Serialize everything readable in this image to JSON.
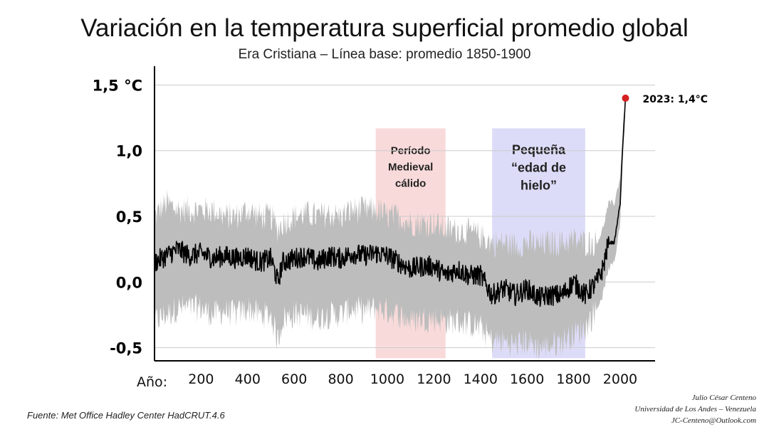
{
  "chart_data": {
    "type": "line",
    "title": "Variación en la temperatura superficial promedio global",
    "subtitle": "Era Cristiana – Línea base: promedio 1850-1900",
    "xlabel": "Año:",
    "xlim": [
      0,
      2150
    ],
    "ylim": [
      -0.6,
      1.6
    ],
    "x_ticks": [
      "200",
      "400",
      "600",
      "800",
      "1000",
      "1200",
      "1400",
      "1600",
      "1800",
      "2000"
    ],
    "y_ticks": [
      {
        "value": -0.5,
        "label": "-0,5"
      },
      {
        "value": 0,
        "label": "0,0"
      },
      {
        "value": 0.5,
        "label": "0,5"
      },
      {
        "value": 1.0,
        "label": "1,0"
      },
      {
        "value": 1.5,
        "label": "1,5 °C"
      }
    ],
    "grid": true,
    "shaded_periods": [
      {
        "label_lines": [
          "Período",
          "Medieval",
          "cálido"
        ],
        "start": 950,
        "end": 1250,
        "color": "#f9dada"
      },
      {
        "label_lines": [
          "Pequeña",
          "“edad de",
          "hielo”"
        ],
        "start": 1450,
        "end": 1850,
        "color": "#dcdcf8"
      }
    ],
    "series": [
      {
        "color": "#000000",
        "x": [
          0,
          50,
          100,
          150,
          200,
          250,
          300,
          350,
          400,
          450,
          500,
          530,
          550,
          600,
          650,
          700,
          750,
          800,
          850,
          900,
          950,
          1000,
          1050,
          1100,
          1150,
          1200,
          1250,
          1300,
          1350,
          1400,
          1450,
          1500,
          1550,
          1600,
          1650,
          1700,
          1750,
          1800,
          1850,
          1900,
          1925,
          1950,
          1975,
          2000,
          2010,
          2023
        ],
        "y": [
          0.15,
          0.2,
          0.25,
          0.2,
          0.22,
          0.18,
          0.2,
          0.18,
          0.2,
          0.15,
          0.18,
          0.0,
          0.15,
          0.18,
          0.2,
          0.15,
          0.2,
          0.18,
          0.22,
          0.2,
          0.22,
          0.2,
          0.15,
          0.1,
          0.12,
          0.12,
          0.05,
          0.1,
          0.05,
          0.05,
          -0.1,
          -0.05,
          -0.1,
          -0.05,
          -0.12,
          -0.1,
          -0.1,
          0.0,
          -0.1,
          0.0,
          0.1,
          0.3,
          0.3,
          0.6,
          1.0,
          1.4
        ],
        "band_lower": [
          -0.3,
          -0.25,
          -0.2,
          -0.2,
          -0.2,
          -0.25,
          -0.22,
          -0.25,
          -0.2,
          -0.25,
          -0.25,
          -0.45,
          -0.28,
          -0.25,
          -0.25,
          -0.28,
          -0.25,
          -0.25,
          -0.2,
          -0.22,
          -0.2,
          -0.22,
          -0.25,
          -0.3,
          -0.28,
          -0.28,
          -0.3,
          -0.3,
          -0.32,
          -0.35,
          -0.45,
          -0.45,
          -0.48,
          -0.45,
          -0.5,
          -0.48,
          -0.45,
          -0.4,
          -0.35,
          -0.2,
          -0.1,
          0.1,
          0.15,
          0.45,
          0.9,
          1.3
        ],
        "band_upper": [
          0.5,
          0.6,
          0.55,
          0.55,
          0.55,
          0.55,
          0.5,
          0.5,
          0.55,
          0.5,
          0.5,
          0.4,
          0.45,
          0.5,
          0.52,
          0.5,
          0.52,
          0.5,
          0.55,
          0.55,
          0.55,
          0.5,
          0.5,
          0.45,
          0.45,
          0.45,
          0.4,
          0.4,
          0.38,
          0.35,
          0.3,
          0.3,
          0.28,
          0.3,
          0.28,
          0.3,
          0.3,
          0.32,
          0.3,
          0.3,
          0.4,
          0.6,
          0.6,
          0.8,
          1.1,
          1.45
        ]
      }
    ],
    "highlight": {
      "x": 2023,
      "y": 1.4,
      "label": "2023: 1,4°C",
      "color": "#d62020"
    }
  },
  "footer": {
    "source": "Fuente: Met Office Hadley Center HadCRUT.4.6",
    "credits": [
      "Julio César Centeno",
      "Universidad de Los Andes – Venezuela",
      "JC-Centeno@Outlook.com"
    ]
  }
}
